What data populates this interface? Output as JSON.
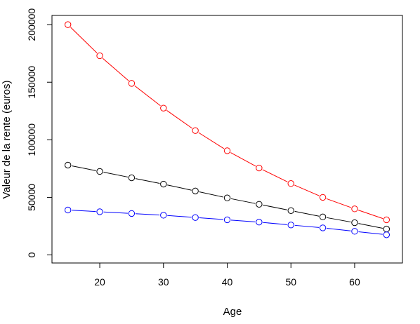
{
  "chart_data": {
    "type": "line",
    "title": "",
    "xlabel": "Age",
    "ylabel": "Valeur de la rente (euros)",
    "xlim": [
      12.5,
      67.5
    ],
    "ylim": [
      -7000,
      208000
    ],
    "x_ticks": [
      20,
      30,
      40,
      50,
      60
    ],
    "y_ticks": [
      0,
      50000,
      100000,
      150000,
      200000
    ],
    "x_tick_labels": [
      "20",
      "30",
      "40",
      "50",
      "60"
    ],
    "y_tick_labels": [
      "0",
      "50000",
      "100000",
      "150000",
      "200000"
    ],
    "grid": false,
    "legend": "none",
    "x": [
      15,
      20,
      25,
      30,
      35,
      40,
      45,
      50,
      55,
      60,
      65
    ],
    "series": [
      {
        "color": "#ff0000",
        "marker": "open-circle",
        "values": [
          200000,
          173000,
          149000,
          127500,
          108000,
          90500,
          75500,
          62000,
          50000,
          40000,
          30500
        ]
      },
      {
        "color": "#000000",
        "marker": "open-circle",
        "values": [
          78000,
          72500,
          67000,
          61500,
          55500,
          49500,
          44000,
          38500,
          33000,
          28000,
          22500
        ]
      },
      {
        "color": "#0000ff",
        "marker": "open-circle",
        "values": [
          39000,
          37500,
          36000,
          34500,
          32500,
          30500,
          28500,
          26000,
          23500,
          20500,
          17500
        ]
      }
    ]
  }
}
